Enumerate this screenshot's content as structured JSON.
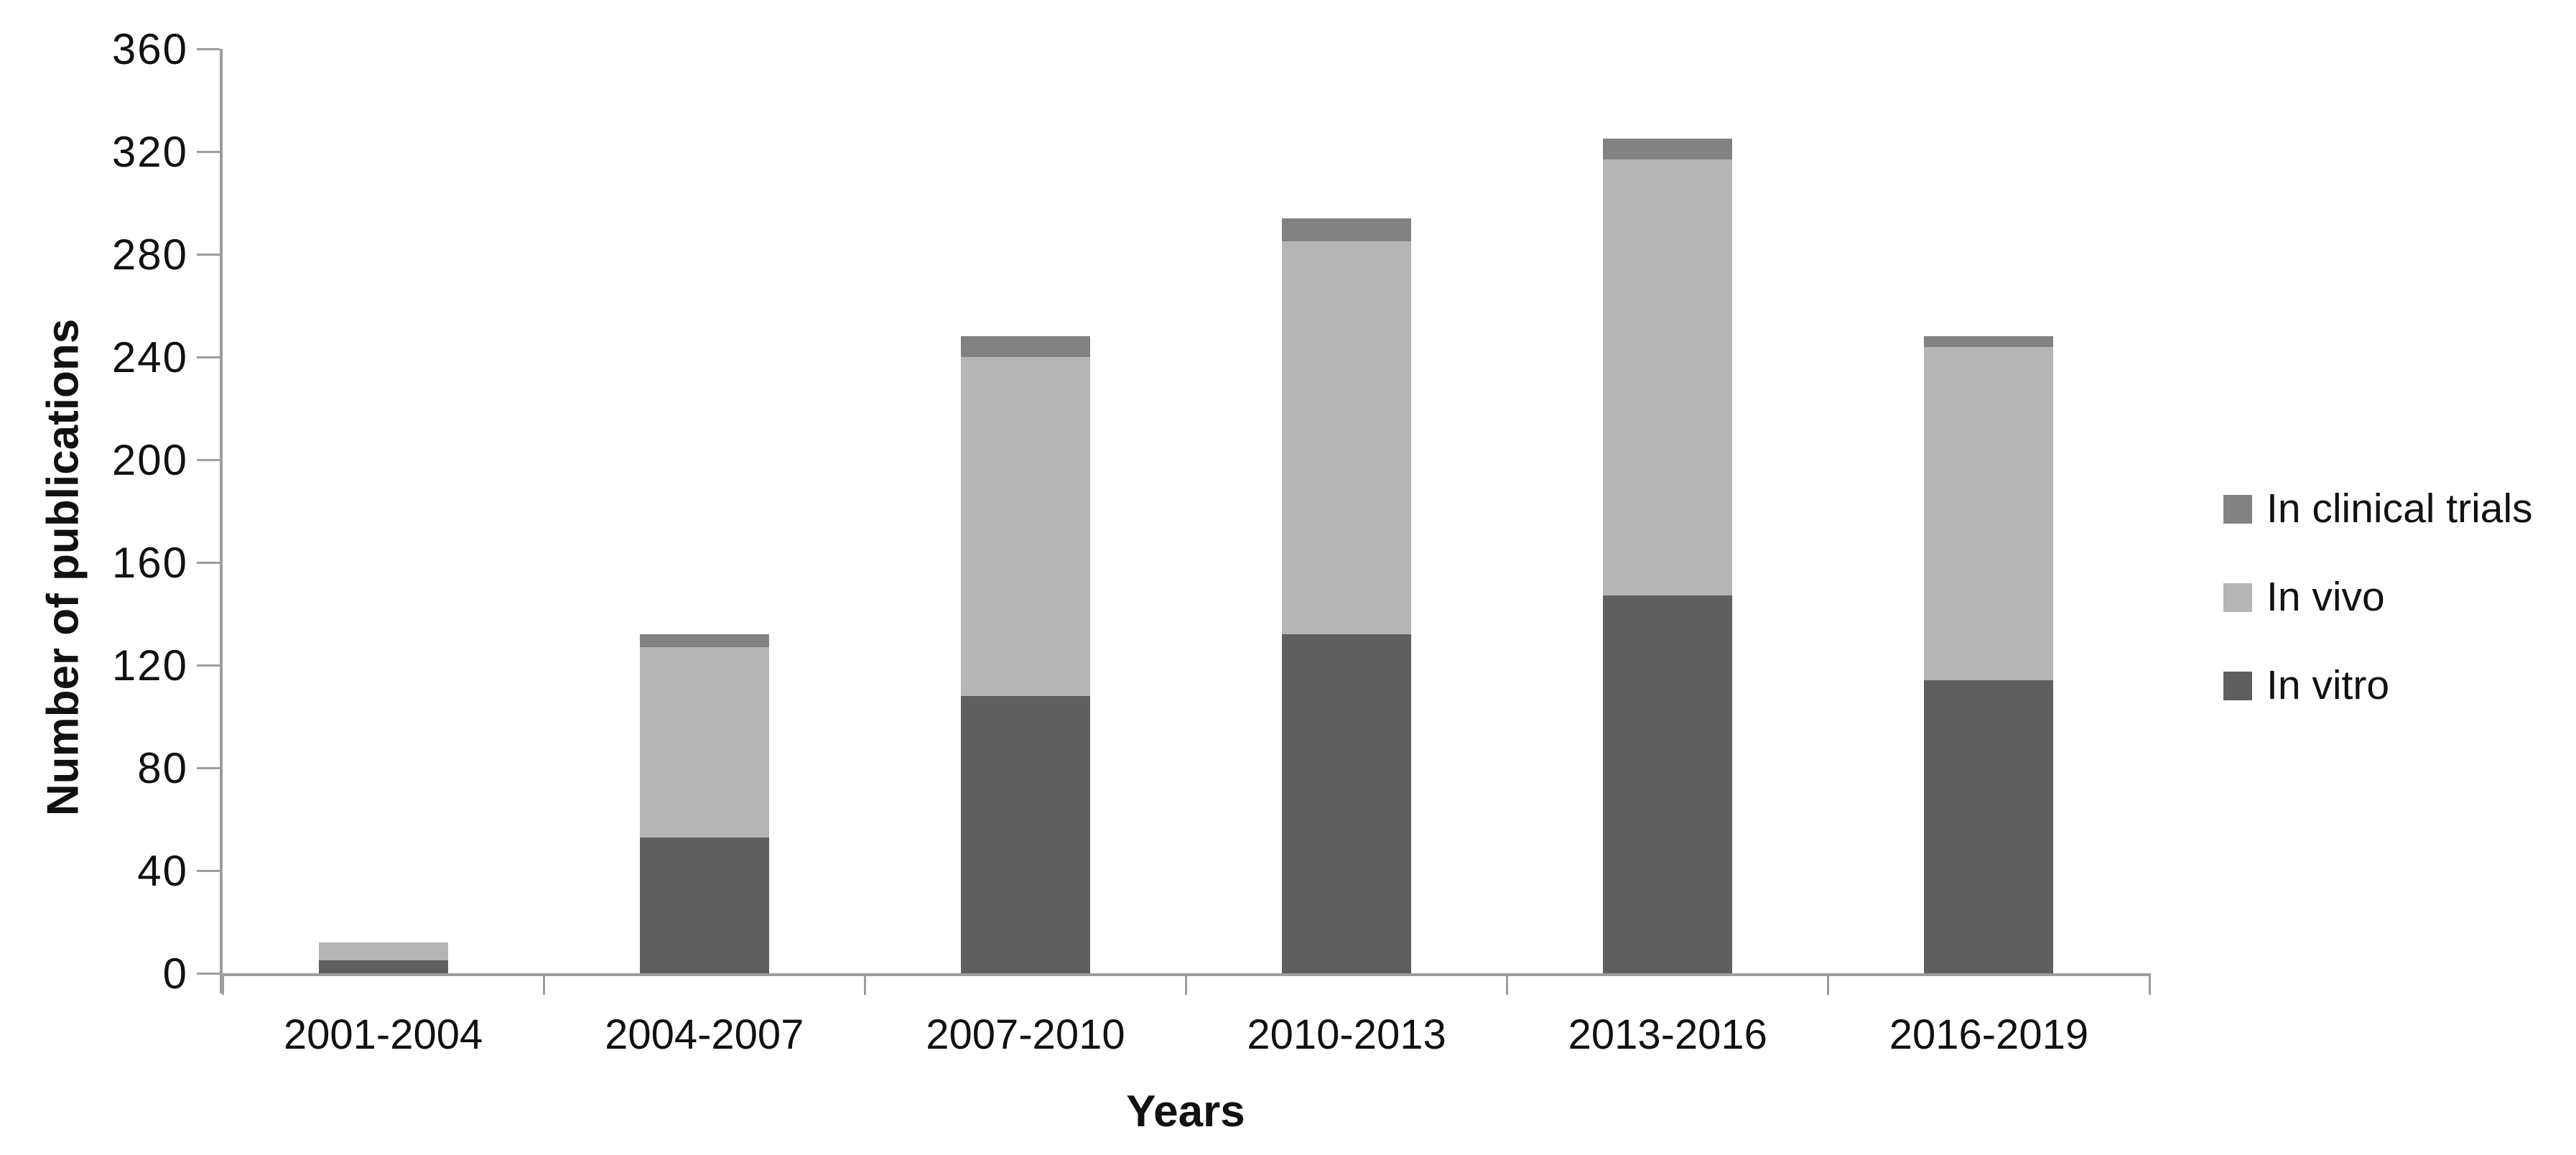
{
  "chart_data": {
    "type": "bar",
    "stacked": true,
    "title": "",
    "xlabel": "Years",
    "ylabel": "Number of publications",
    "categories": [
      "2001-2004",
      "2004-2007",
      "2007-2010",
      "2010-2013",
      "2013-2016",
      "2016-2019"
    ],
    "series": [
      {
        "name": "In vitro",
        "color": "#5f5f5f",
        "values": [
          5,
          53,
          108,
          132,
          147,
          114
        ]
      },
      {
        "name": "In vivo",
        "color": "#b5b5b5",
        "values": [
          7,
          74,
          132,
          153,
          170,
          130
        ]
      },
      {
        "name": "In clinical trials",
        "color": "#828282",
        "values": [
          0,
          5,
          8,
          9,
          8,
          4
        ]
      }
    ],
    "stack_totals": [
      12,
      132,
      248,
      294,
      325,
      248
    ],
    "ylim": [
      0,
      360
    ],
    "ytick_step": 40,
    "ytick_labels": [
      "0",
      "40",
      "80",
      "120",
      "160",
      "200",
      "240",
      "280",
      "320",
      "360"
    ],
    "legend_order_top_to_bottom": [
      "In clinical trials",
      "In vivo",
      "In vitro"
    ],
    "legend_position": "right",
    "grid": false,
    "axis_color": "#9d9d9d",
    "text_color": "#111111"
  }
}
